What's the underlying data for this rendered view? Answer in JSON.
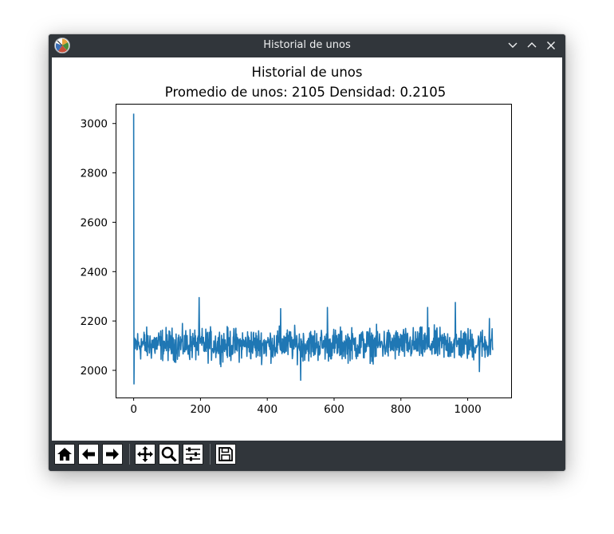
{
  "window": {
    "title": "Historial de unos",
    "controls": [
      "minimize-icon",
      "maximize-icon",
      "close-icon"
    ]
  },
  "chart_data": {
    "type": "line",
    "title": "Historial de unos",
    "subtitle": "Promedio de unos: 2105 Densidad: 0.2105",
    "xlabel": "",
    "ylabel": "",
    "xlim": [
      -54,
      1130
    ],
    "ylim": [
      1890,
      3080
    ],
    "xticks": [
      0,
      200,
      400,
      600,
      800,
      1000
    ],
    "yticks": [
      2000,
      2200,
      2400,
      2600,
      2800,
      3000
    ],
    "grid": false,
    "series": [
      {
        "color": "#1f77b4",
        "n_points": 1076,
        "x_start": 0,
        "peak_points": [
          [
            0,
            3040
          ],
          [
            1,
            1945
          ],
          [
            196,
            2295
          ],
          [
            963,
            2275
          ],
          [
            580,
            2255
          ],
          [
            440,
            2250
          ],
          [
            500,
            1960
          ],
          [
            880,
            2255
          ],
          [
            1035,
            1995
          ],
          [
            1065,
            2210
          ]
        ],
        "mean": 2105,
        "typical_range": [
          2000,
          2200
        ]
      }
    ]
  },
  "toolbar": {
    "items": [
      "home-icon",
      "back-arrow-icon",
      "forward-arrow-icon",
      "pan-icon",
      "zoom-icon",
      "configure-subplots-icon",
      "save-icon"
    ]
  }
}
